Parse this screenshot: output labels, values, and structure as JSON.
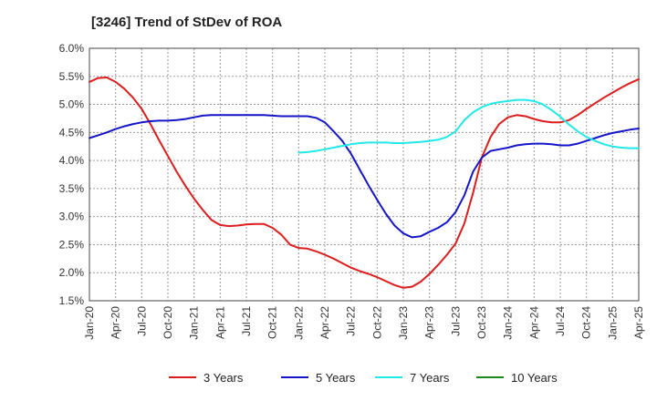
{
  "title": "[3246]  Trend of StDev of ROA",
  "chart_data": {
    "type": "line",
    "title": "[3246]  Trend of StDev of ROA",
    "xlabel": "",
    "ylabel": "",
    "ylim": [
      1.5,
      6.0
    ],
    "y_ticks": [
      "1.5%",
      "2.0%",
      "2.5%",
      "3.0%",
      "3.5%",
      "4.0%",
      "4.5%",
      "5.0%",
      "5.5%",
      "6.0%"
    ],
    "x_ticks": [
      "Jan-20",
      "Apr-20",
      "Jul-20",
      "Oct-20",
      "Jan-21",
      "Apr-21",
      "Jul-21",
      "Oct-21",
      "Jan-22",
      "Apr-22",
      "Jul-22",
      "Oct-22",
      "Jan-23",
      "Apr-23",
      "Jul-23",
      "Oct-23",
      "Jan-24",
      "Apr-24",
      "Jul-24",
      "Oct-24",
      "Jan-25",
      "Apr-25"
    ],
    "grid": true,
    "legend_position": "bottom",
    "series": [
      {
        "name": "3 Years",
        "color": "#dd1c1c",
        "points": [
          [
            "2020-01",
            5.4
          ],
          [
            "2020-02",
            5.47
          ],
          [
            "2020-03",
            5.48
          ],
          [
            "2020-04",
            5.4
          ],
          [
            "2020-05",
            5.28
          ],
          [
            "2020-06",
            5.12
          ],
          [
            "2020-07",
            4.92
          ],
          [
            "2020-08",
            4.65
          ],
          [
            "2020-09",
            4.36
          ],
          [
            "2020-10",
            4.08
          ],
          [
            "2020-11",
            3.8
          ],
          [
            "2020-12",
            3.55
          ],
          [
            "2021-01",
            3.32
          ],
          [
            "2021-02",
            3.12
          ],
          [
            "2021-03",
            2.94
          ],
          [
            "2021-04",
            2.85
          ],
          [
            "2021-05",
            2.83
          ],
          [
            "2021-06",
            2.84
          ],
          [
            "2021-07",
            2.86
          ],
          [
            "2021-08",
            2.87
          ],
          [
            "2021-09",
            2.87
          ],
          [
            "2021-10",
            2.8
          ],
          [
            "2021-11",
            2.68
          ],
          [
            "2021-12",
            2.5
          ],
          [
            "2022-01",
            2.44
          ],
          [
            "2022-02",
            2.43
          ],
          [
            "2022-03",
            2.38
          ],
          [
            "2022-04",
            2.32
          ],
          [
            "2022-05",
            2.25
          ],
          [
            "2022-06",
            2.17
          ],
          [
            "2022-07",
            2.09
          ],
          [
            "2022-08",
            2.03
          ],
          [
            "2022-09",
            1.98
          ],
          [
            "2022-10",
            1.92
          ],
          [
            "2022-11",
            1.85
          ],
          [
            "2022-12",
            1.78
          ],
          [
            "2023-01",
            1.73
          ],
          [
            "2023-02",
            1.75
          ],
          [
            "2023-03",
            1.84
          ],
          [
            "2023-04",
            1.98
          ],
          [
            "2023-05",
            2.14
          ],
          [
            "2023-06",
            2.32
          ],
          [
            "2023-07",
            2.52
          ],
          [
            "2023-08",
            2.88
          ],
          [
            "2023-09",
            3.42
          ],
          [
            "2023-10",
            4.05
          ],
          [
            "2023-11",
            4.42
          ],
          [
            "2023-12",
            4.65
          ],
          [
            "2024-01",
            4.77
          ],
          [
            "2024-02",
            4.81
          ],
          [
            "2024-03",
            4.79
          ],
          [
            "2024-04",
            4.74
          ],
          [
            "2024-05",
            4.7
          ],
          [
            "2024-06",
            4.68
          ],
          [
            "2024-07",
            4.68
          ],
          [
            "2024-08",
            4.72
          ],
          [
            "2024-09",
            4.81
          ],
          [
            "2024-10",
            4.92
          ],
          [
            "2024-11",
            5.02
          ],
          [
            "2024-12",
            5.12
          ],
          [
            "2025-01",
            5.21
          ],
          [
            "2025-02",
            5.3
          ],
          [
            "2025-03",
            5.38
          ],
          [
            "2025-04",
            5.45
          ]
        ]
      },
      {
        "name": "5 Years",
        "color": "#1515c8",
        "points": [
          [
            "2020-01",
            4.4
          ],
          [
            "2020-02",
            4.45
          ],
          [
            "2020-03",
            4.5
          ],
          [
            "2020-04",
            4.56
          ],
          [
            "2020-05",
            4.61
          ],
          [
            "2020-06",
            4.65
          ],
          [
            "2020-07",
            4.68
          ],
          [
            "2020-08",
            4.7
          ],
          [
            "2020-09",
            4.71
          ],
          [
            "2020-10",
            4.71
          ],
          [
            "2020-11",
            4.72
          ],
          [
            "2020-12",
            4.74
          ],
          [
            "2021-01",
            4.77
          ],
          [
            "2021-02",
            4.8
          ],
          [
            "2021-03",
            4.81
          ],
          [
            "2021-04",
            4.81
          ],
          [
            "2021-05",
            4.81
          ],
          [
            "2021-06",
            4.81
          ],
          [
            "2021-07",
            4.81
          ],
          [
            "2021-08",
            4.81
          ],
          [
            "2021-09",
            4.81
          ],
          [
            "2021-10",
            4.8
          ],
          [
            "2021-11",
            4.79
          ],
          [
            "2021-12",
            4.79
          ],
          [
            "2022-01",
            4.79
          ],
          [
            "2022-02",
            4.79
          ],
          [
            "2022-03",
            4.76
          ],
          [
            "2022-04",
            4.68
          ],
          [
            "2022-05",
            4.52
          ],
          [
            "2022-06",
            4.35
          ],
          [
            "2022-07",
            4.12
          ],
          [
            "2022-08",
            3.84
          ],
          [
            "2022-09",
            3.56
          ],
          [
            "2022-10",
            3.3
          ],
          [
            "2022-11",
            3.05
          ],
          [
            "2022-12",
            2.84
          ],
          [
            "2023-01",
            2.7
          ],
          [
            "2023-02",
            2.63
          ],
          [
            "2023-03",
            2.65
          ],
          [
            "2023-04",
            2.73
          ],
          [
            "2023-05",
            2.8
          ],
          [
            "2023-06",
            2.9
          ],
          [
            "2023-07",
            3.08
          ],
          [
            "2023-08",
            3.38
          ],
          [
            "2023-09",
            3.8
          ],
          [
            "2023-10",
            4.05
          ],
          [
            "2023-11",
            4.17
          ],
          [
            "2023-12",
            4.2
          ],
          [
            "2024-01",
            4.23
          ],
          [
            "2024-02",
            4.27
          ],
          [
            "2024-03",
            4.29
          ],
          [
            "2024-04",
            4.3
          ],
          [
            "2024-05",
            4.3
          ],
          [
            "2024-06",
            4.29
          ],
          [
            "2024-07",
            4.27
          ],
          [
            "2024-08",
            4.27
          ],
          [
            "2024-09",
            4.3
          ],
          [
            "2024-10",
            4.35
          ],
          [
            "2024-11",
            4.4
          ],
          [
            "2024-12",
            4.45
          ],
          [
            "2025-01",
            4.49
          ],
          [
            "2025-02",
            4.52
          ],
          [
            "2025-03",
            4.55
          ],
          [
            "2025-04",
            4.57
          ]
        ]
      },
      {
        "name": "7 Years",
        "color": "#22e8e8",
        "points": [
          [
            "2022-01",
            4.14
          ],
          [
            "2022-02",
            4.15
          ],
          [
            "2022-03",
            4.17
          ],
          [
            "2022-04",
            4.2
          ],
          [
            "2022-05",
            4.23
          ],
          [
            "2022-06",
            4.26
          ],
          [
            "2022-07",
            4.29
          ],
          [
            "2022-08",
            4.31
          ],
          [
            "2022-09",
            4.32
          ],
          [
            "2022-10",
            4.32
          ],
          [
            "2022-11",
            4.32
          ],
          [
            "2022-12",
            4.31
          ],
          [
            "2023-01",
            4.31
          ],
          [
            "2023-02",
            4.32
          ],
          [
            "2023-03",
            4.33
          ],
          [
            "2023-04",
            4.35
          ],
          [
            "2023-05",
            4.37
          ],
          [
            "2023-06",
            4.42
          ],
          [
            "2023-07",
            4.52
          ],
          [
            "2023-08",
            4.72
          ],
          [
            "2023-09",
            4.86
          ],
          [
            "2023-10",
            4.95
          ],
          [
            "2023-11",
            5.01
          ],
          [
            "2023-12",
            5.04
          ],
          [
            "2024-01",
            5.06
          ],
          [
            "2024-02",
            5.08
          ],
          [
            "2024-03",
            5.08
          ],
          [
            "2024-04",
            5.06
          ],
          [
            "2024-05",
            5.0
          ],
          [
            "2024-06",
            4.9
          ],
          [
            "2024-07",
            4.78
          ],
          [
            "2024-08",
            4.64
          ],
          [
            "2024-09",
            4.52
          ],
          [
            "2024-10",
            4.42
          ],
          [
            "2024-11",
            4.35
          ],
          [
            "2024-12",
            4.29
          ],
          [
            "2025-01",
            4.25
          ],
          [
            "2025-02",
            4.23
          ],
          [
            "2025-03",
            4.22
          ],
          [
            "2025-04",
            4.22
          ]
        ]
      },
      {
        "name": "10 Years",
        "color": "#1a8a1a",
        "points": []
      }
    ]
  }
}
